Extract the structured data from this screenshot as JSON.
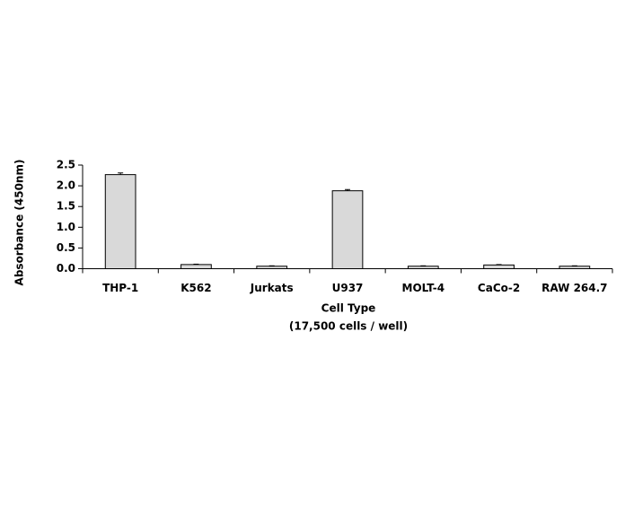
{
  "chart_data": {
    "type": "bar",
    "ylabel": "Absorbance (450nm)",
    "xlabel": [
      "Cell Type",
      "(17,500 cells / well)"
    ],
    "categories": [
      "THP-1",
      "K562",
      "Jurkats",
      "U937",
      "MOLT-4",
      "CaCo-2",
      "RAW 264.7"
    ],
    "values": [
      2.27,
      0.1,
      0.06,
      1.88,
      0.06,
      0.09,
      0.06
    ],
    "errors": [
      0.04,
      0.01,
      0.01,
      0.03,
      0.01,
      0.01,
      0.01
    ],
    "color": "#d9d9d9",
    "ylim": [
      0,
      2.5
    ],
    "yticks": [
      {
        "value": 0,
        "label": "0.0"
      },
      0.5,
      {
        "value": 1,
        "label": "1.0"
      },
      1.5,
      {
        "value": 2,
        "label": "2.0"
      },
      2.5
    ],
    "grid": false
  }
}
